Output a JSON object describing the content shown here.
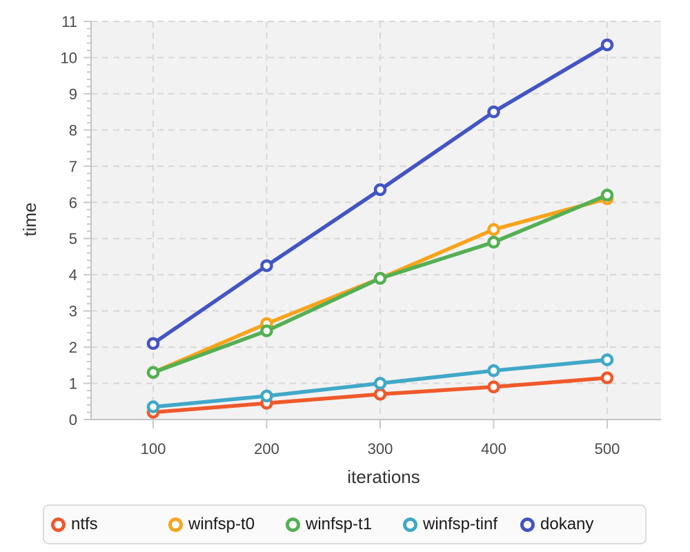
{
  "chart_data": {
    "type": "line",
    "x": [
      100,
      200,
      300,
      400,
      500
    ],
    "series": [
      {
        "name": "ntfs",
        "color": "#f0592b",
        "values": [
          0.2,
          0.45,
          0.7,
          0.9,
          1.15
        ]
      },
      {
        "name": "winfsp-t0",
        "color": "#f9a31b",
        "values": [
          1.3,
          2.65,
          3.9,
          5.25,
          6.1
        ]
      },
      {
        "name": "winfsp-t1",
        "color": "#55b054",
        "values": [
          1.3,
          2.45,
          3.9,
          4.9,
          6.2
        ]
      },
      {
        "name": "winfsp-tinf",
        "color": "#41a8c8",
        "values": [
          0.35,
          0.65,
          1.0,
          1.35,
          1.65
        ]
      },
      {
        "name": "dokany",
        "color": "#4355c4",
        "values": [
          2.1,
          4.25,
          6.35,
          8.5,
          10.35
        ]
      }
    ],
    "title": "",
    "xlabel": "iterations",
    "ylabel": "time",
    "xlim": [
      45,
      547
    ],
    "ylim": [
      0,
      11
    ],
    "xticks": [
      100,
      200,
      300,
      400,
      500
    ],
    "yticks": [
      0,
      1,
      2,
      3,
      4,
      5,
      6,
      7,
      8,
      9,
      10,
      11
    ],
    "y_minor_tick_step": 0.2,
    "grid": true,
    "grid_style": "dashed",
    "legend_position": "bottom",
    "marker": "open-circle",
    "plot_background": "#f2f2f2",
    "grid_color": "#d8d8d8",
    "axis_line_color": "#c4c4c4",
    "tick_label_color": "#4a4a4a",
    "axis_title_color": "#333333"
  }
}
